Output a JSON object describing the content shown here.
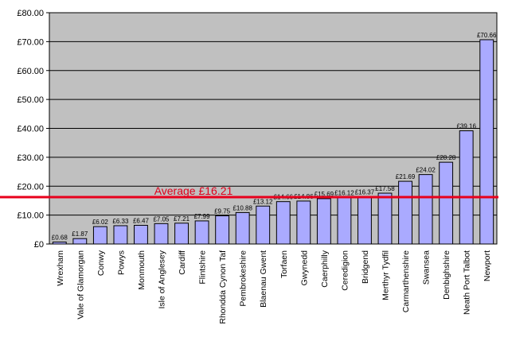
{
  "chart_data": {
    "type": "bar",
    "categories": [
      "Wrexham",
      "Vale of Glamorgan",
      "Conwy",
      "Powys",
      "Monmouth",
      "Isle of Anglesey",
      "Cardiff",
      "Flintshire",
      "Rhondda Cynon Taf",
      "Pembrokeshire",
      "Blaenau Gwent",
      "Torfaen",
      "Gwynedd",
      "Caerphilly",
      "Ceredigion",
      "Bridgend",
      "Merthyr Tydfil",
      "Carmarthenshire",
      "Swansea",
      "Denbighshire",
      "Neath Port Talbot",
      "Newport"
    ],
    "values": [
      0.68,
      1.87,
      6.02,
      6.33,
      6.47,
      7.05,
      7.21,
      7.99,
      9.75,
      10.88,
      13.12,
      14.66,
      14.86,
      15.69,
      16.12,
      16.37,
      17.58,
      21.69,
      24.02,
      28.28,
      39.16,
      70.66
    ],
    "data_labels": [
      "£0.68",
      "£1.87",
      "£6.02",
      "£6.33",
      "£6.47",
      "£7.05",
      "£7.21",
      "£7.99",
      "£9.75",
      "£10.88",
      "£13.12",
      "£14.66",
      "£14.86",
      "£15.69",
      "£16.12",
      "£16.37",
      "£17.58",
      "£21.69",
      "£24.02",
      "£28.28",
      "£39.16",
      "£70.66"
    ],
    "y_tick_labels": [
      "£0",
      "£10.00",
      "£20.00",
      "£30.00",
      "£40.00",
      "£50.00",
      "£60.00",
      "£70.00",
      "£80.00"
    ],
    "ylim": [
      0,
      80
    ],
    "y_ticks": [
      0,
      10,
      20,
      30,
      40,
      50,
      60,
      70,
      80
    ],
    "grid": true,
    "reference_line": {
      "value": 16.21,
      "label": "Average £16.21",
      "color": "#e8001c"
    },
    "colors": {
      "bar_fill": "#aaaaff",
      "bar_stroke": "#000000",
      "plot_background": "#c0c0c0",
      "gridline": "#000000"
    }
  }
}
